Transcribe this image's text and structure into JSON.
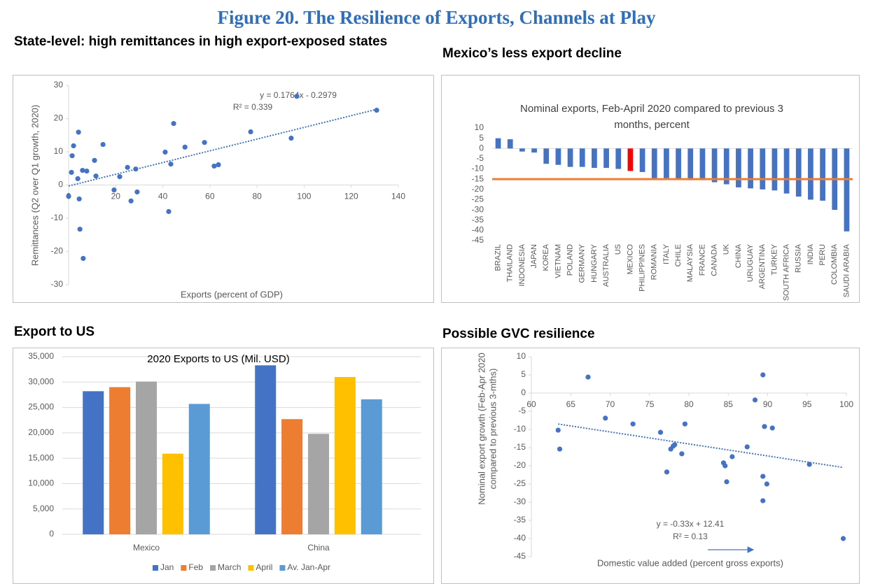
{
  "title": "Figure 20. The Resilience of Exports, Channels at Play",
  "chart_data": [
    {
      "heading": "State-level: high remittances in high export-exposed states",
      "type": "scatter",
      "x_label": "Exports (percent of GDP)",
      "y_label": "Remittances (Q2 over Q1 growth, 2020)",
      "x": [
        0,
        1.2,
        1.5,
        2.1,
        3.9,
        4.2,
        4.5,
        4.8,
        5.9,
        6.2,
        7.7,
        11,
        11.6,
        14.6,
        19.3,
        21.7,
        25,
        26.5,
        28.5,
        29.1,
        41,
        42.5,
        43.4,
        44.6,
        49.4,
        57.7,
        61.8,
        63.6,
        77.3,
        94.5,
        96.9,
        130.8
      ],
      "y": [
        -3.4,
        3.8,
        8.8,
        11.8,
        1.9,
        15.9,
        -4.2,
        -13.3,
        4.4,
        -22.1,
        4.2,
        7.4,
        2.7,
        12.2,
        -1.5,
        2.5,
        5.3,
        -4.8,
        4.8,
        -2.1,
        9.9,
        -8,
        6.3,
        18.5,
        11.4,
        12.8,
        5.7,
        6.1,
        16,
        14.1,
        26.7,
        22.5
      ],
      "color": "#4472c4",
      "xlim": [
        0,
        140
      ],
      "xticks": [
        0,
        20,
        40,
        60,
        80,
        100,
        120,
        140
      ],
      "ylim": [
        -30,
        30
      ],
      "yticks": [
        -30,
        -20,
        -10,
        0,
        10,
        20,
        30
      ],
      "trendline": {
        "slope": 0.1764,
        "intercept": -0.2979,
        "equation": "y = 0.1764x  - 0.2979",
        "r2": "R² = 0.339"
      }
    },
    {
      "heading": "Mexico’s less export decline",
      "type": "bar",
      "title": "Nominal exports, Feb-April 2020 compared to previous 3 months, percent",
      "categories": [
        "BRAZIL",
        "THAILAND",
        "INDONESIA",
        "JAPAN",
        "KOREA",
        "VIETNAM",
        "POLAND",
        "GERMANY",
        "HUNGARY",
        "AUSTRALIA",
        "US",
        "MEXICO",
        "PHILIPPINES",
        "ROMANIA",
        "ITALY",
        "CHILE",
        "MALAYSIA",
        "FRANCE",
        "CANADA",
        "UK",
        "CHINA",
        "URUGUAY",
        "ARGENTINA",
        "TURKEY",
        "SOUTH AFRICA",
        "RUSSIA",
        "INDIA",
        "PERU",
        "COLOMBIA",
        "SAUDI ARABIA"
      ],
      "values": [
        5,
        4.5,
        -1.5,
        -2,
        -7.5,
        -8,
        -9,
        -9,
        -9.5,
        -9.5,
        -10,
        -11,
        -11.5,
        -14.5,
        -14.5,
        -15,
        -15.5,
        -15.5,
        -16.5,
        -17.5,
        -19,
        -19.5,
        -20,
        -20.5,
        -22,
        -23.5,
        -25,
        -25.5,
        -30,
        -40.5
      ],
      "colors": [
        "#4472c4",
        "#4472c4",
        "#4472c4",
        "#4472c4",
        "#4472c4",
        "#4472c4",
        "#4472c4",
        "#4472c4",
        "#4472c4",
        "#4472c4",
        "#4472c4",
        "#ff0000",
        "#4472c4",
        "#4472c4",
        "#4472c4",
        "#4472c4",
        "#4472c4",
        "#4472c4",
        "#4472c4",
        "#4472c4",
        "#4472c4",
        "#4472c4",
        "#4472c4",
        "#4472c4",
        "#4472c4",
        "#4472c4",
        "#4472c4",
        "#4472c4",
        "#4472c4",
        "#4472c4"
      ],
      "ylim": [
        -45,
        10
      ],
      "yticks": [
        10,
        5,
        0,
        -5,
        -10,
        -15,
        -20,
        -25,
        -30,
        -35,
        -40,
        -45
      ],
      "reference_line": {
        "value": -15,
        "color": "#ed7d31"
      }
    },
    {
      "heading": "Export to US",
      "type": "bar",
      "title": "2020 Exports to US (Mil. USD)",
      "categories": [
        "Mexico",
        "China"
      ],
      "series": [
        {
          "name": "Jan",
          "color": "#4472c4",
          "values": [
            28200,
            33300
          ]
        },
        {
          "name": "Feb",
          "color": "#ed7d31",
          "values": [
            29000,
            22700
          ]
        },
        {
          "name": "March",
          "color": "#a5a5a5",
          "values": [
            30100,
            19800
          ]
        },
        {
          "name": "April",
          "color": "#ffc000",
          "values": [
            15900,
            31000
          ]
        },
        {
          "name": "Av. Jan-Apr",
          "color": "#5b9bd5",
          "values": [
            25700,
            26600
          ]
        }
      ],
      "ylim": [
        0,
        35000
      ],
      "yticks": [
        0,
        {
          "value": 5000,
          "label": "5,000"
        },
        {
          "value": 10000,
          "label": "10,000"
        },
        {
          "value": 15000,
          "label": "15,000"
        },
        {
          "value": 20000,
          "label": "20,000"
        },
        {
          "value": 25000,
          "label": "25,000"
        },
        {
          "value": 30000,
          "label": "30,000"
        },
        {
          "value": 35000,
          "label": "35,000"
        }
      ],
      "grid": true,
      "legend": "bottom"
    },
    {
      "heading": "Possible GVC resilience",
      "type": "scatter",
      "x_label": "Domestic value added (percent gross exports)",
      "y_label": [
        "Nominal export growth (Feb-Apr 2020",
        "compared to previous 3-mths)"
      ],
      "x": [
        63.4,
        63.6,
        67.2,
        69.4,
        72.9,
        76.4,
        77.2,
        77.7,
        78,
        78.2,
        79.1,
        79.5,
        84.4,
        84.6,
        84.8,
        85.5,
        87.4,
        88.4,
        89.4,
        89.4,
        89.6,
        89.4,
        89.9,
        90.6,
        95.3,
        99.6
      ],
      "y": [
        -10.2,
        -15.4,
        4.4,
        -6.9,
        -8.5,
        -10.8,
        -21.7,
        -15.4,
        -14.6,
        -14.2,
        -16.7,
        -8.5,
        -19.2,
        -20,
        -24.4,
        -17.5,
        -14.8,
        -1.9,
        5,
        -22.9,
        -9.2,
        -29.6,
        -25,
        -9.6,
        -19.6,
        -40
      ],
      "color": "#4472c4",
      "xlim": [
        60,
        100
      ],
      "xticks": [
        60,
        65,
        70,
        75,
        80,
        85,
        90,
        95,
        100
      ],
      "ylim": [
        -45,
        10
      ],
      "yticks": [
        10,
        5,
        0,
        -5,
        -10,
        -15,
        -20,
        -25,
        -30,
        -35,
        -40,
        -45
      ],
      "trendline": {
        "slope": -0.33,
        "intercept": 12.41,
        "equation": "y = -0.33x + 12.41",
        "r2": "R² = 0.13"
      }
    }
  ]
}
